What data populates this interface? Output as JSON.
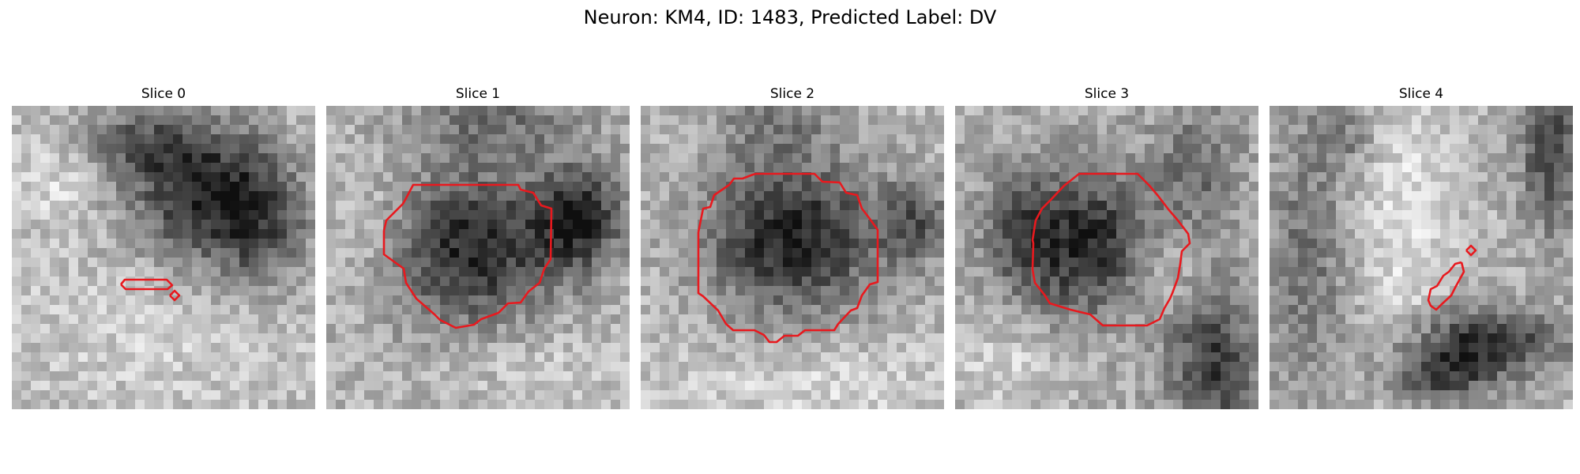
{
  "figure": {
    "title": "Neuron: KM4, ID: 1483, Predicted Label: DV"
  },
  "panels": [
    {
      "title": "Slice 0"
    },
    {
      "title": "Slice 1"
    },
    {
      "title": "Slice 2"
    },
    {
      "title": "Slice 3"
    },
    {
      "title": "Slice 4"
    }
  ],
  "contour_color": "#e8191e"
}
